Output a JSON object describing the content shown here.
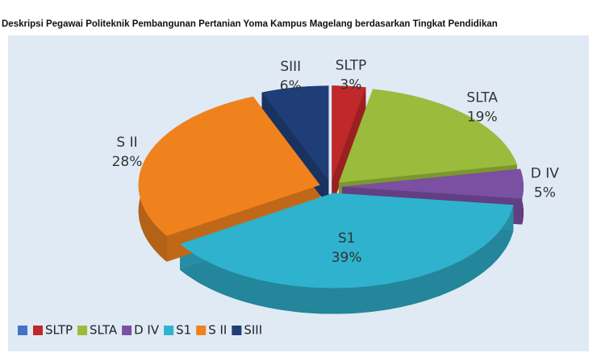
{
  "chart_data": {
    "type": "pie3d",
    "title": "Deskripsi Pegawai Politeknik Pembangunan Pertanian Yoma Kampus Magelang berdasarkan Tingkat Pendidikan",
    "categories": [
      null,
      "SLTP",
      "SLTA",
      "D IV",
      "S1",
      "S II",
      "SIII"
    ],
    "values": [
      0,
      3,
      19,
      5,
      39,
      28,
      6
    ],
    "value_labels": [
      null,
      "3%",
      "19%",
      "5%",
      "39%",
      "28%",
      "6%"
    ],
    "colors": [
      "#4472c4",
      "#c0282a",
      "#9bbb3c",
      "#7b4fa2",
      "#2fb2cd",
      "#f0821e",
      "#1f3e78"
    ],
    "legend": "bottom-left"
  }
}
